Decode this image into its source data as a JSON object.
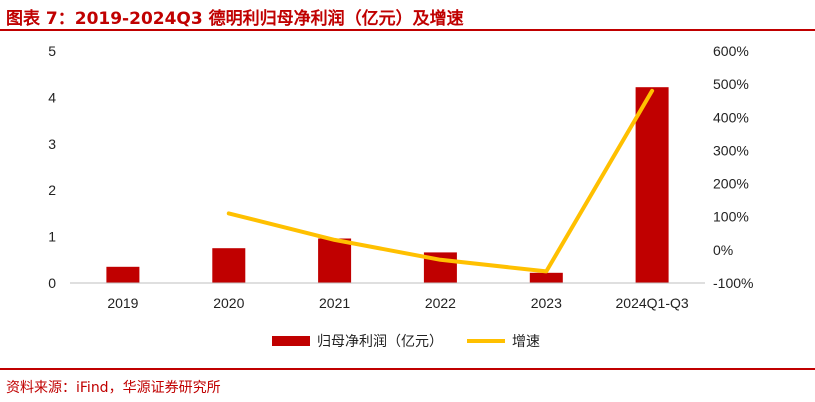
{
  "header": {
    "title": "图表 7：2019-2024Q3 德明利归母净利润（亿元）及增速"
  },
  "footer": {
    "source": "资料来源：iFind，华源证券研究所"
  },
  "colors": {
    "accent": "#c00000",
    "bar": "#c00000",
    "line": "#ffc000"
  },
  "chart_data": {
    "type": "bar",
    "categories": [
      "2019",
      "2020",
      "2021",
      "2022",
      "2023",
      "2024Q1-Q3"
    ],
    "series": [
      {
        "name": "归母净利润（亿元）",
        "type": "bar",
        "axis": "left",
        "values": [
          0.35,
          0.75,
          0.96,
          0.66,
          0.22,
          4.22
        ]
      },
      {
        "name": "增速",
        "type": "line",
        "axis": "right",
        "values": [
          null,
          110,
          30,
          -30,
          -65,
          480
        ]
      }
    ],
    "left_axis": {
      "ylim": [
        0,
        5
      ],
      "ticks": [
        "0",
        "1",
        "2",
        "3",
        "4",
        "5"
      ]
    },
    "right_axis": {
      "ylim": [
        -100,
        600
      ],
      "ticks": [
        "-100%",
        "0%",
        "100%",
        "200%",
        "300%",
        "400%",
        "500%",
        "600%"
      ]
    },
    "grid": false,
    "legend": {
      "placement": "bottom-center",
      "bar_label": "归母净利润（亿元）",
      "line_label": "增速"
    }
  }
}
